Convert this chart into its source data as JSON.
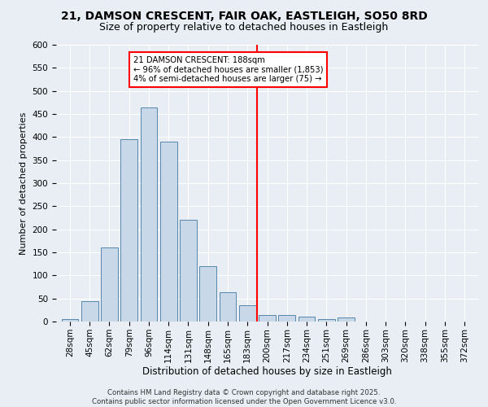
{
  "title_line1": "21, DAMSON CRESCENT, FAIR OAK, EASTLEIGH, SO50 8RD",
  "title_line2": "Size of property relative to detached houses in Eastleigh",
  "xlabel": "Distribution of detached houses by size in Eastleigh",
  "ylabel": "Number of detached properties",
  "footer_line1": "Contains HM Land Registry data © Crown copyright and database right 2025.",
  "footer_line2": "Contains public sector information licensed under the Open Government Licence v3.0.",
  "bin_labels": [
    "28sqm",
    "45sqm",
    "62sqm",
    "79sqm",
    "96sqm",
    "114sqm",
    "131sqm",
    "148sqm",
    "165sqm",
    "183sqm",
    "200sqm",
    "217sqm",
    "234sqm",
    "251sqm",
    "269sqm",
    "286sqm",
    "303sqm",
    "320sqm",
    "338sqm",
    "355sqm",
    "372sqm"
  ],
  "bar_values": [
    5,
    45,
    160,
    395,
    465,
    390,
    220,
    120,
    63,
    35,
    15,
    15,
    10,
    5,
    8,
    0,
    0,
    0,
    0,
    0,
    0
  ],
  "bar_color": "#c8d8e8",
  "bar_edge_color": "#5588aa",
  "vline_x_index": 9.5,
  "vline_color": "red",
  "annotation_text": "21 DAMSON CRESCENT: 188sqm\n← 96% of detached houses are smaller (1,853)\n4% of semi-detached houses are larger (75) →",
  "annotation_box_color": "white",
  "annotation_box_edge_color": "red",
  "ylim": [
    0,
    600
  ],
  "yticks": [
    0,
    50,
    100,
    150,
    200,
    250,
    300,
    350,
    400,
    450,
    500,
    550,
    600
  ],
  "background_color": "#e8eef4",
  "grid_color": "white",
  "title_fontsize": 10,
  "subtitle_fontsize": 9,
  "ylabel_fontsize": 8,
  "xlabel_fontsize": 8.5,
  "tick_fontsize": 7.5,
  "footer_fontsize": 6.2
}
